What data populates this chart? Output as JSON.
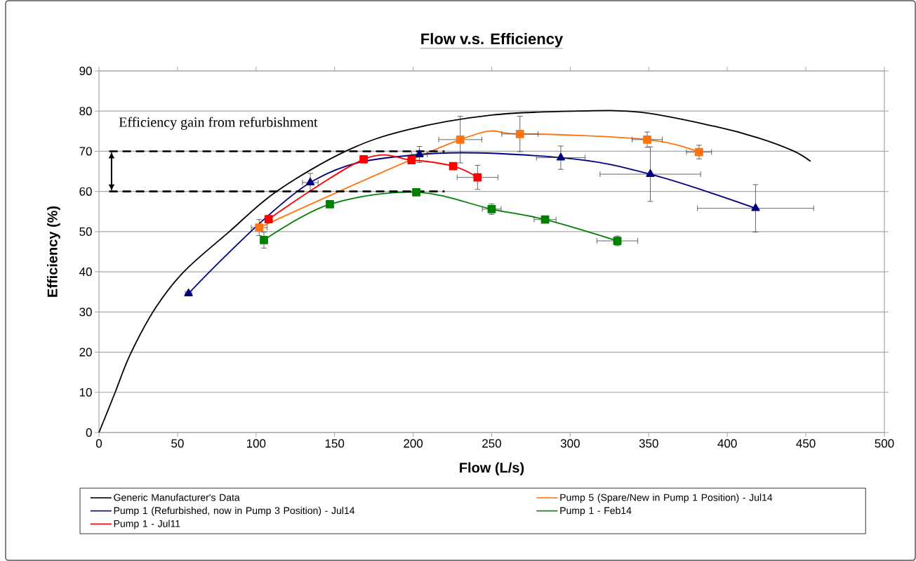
{
  "chart_data": {
    "type": "line",
    "title": "Flow v.s. Efficiency",
    "xlabel": "Flow (L/s)",
    "ylabel": "Efficiency (%)",
    "xlim": [
      0,
      500
    ],
    "ylim": [
      0,
      90
    ],
    "xticks": [
      0,
      50,
      100,
      150,
      200,
      250,
      300,
      350,
      400,
      450,
      500
    ],
    "yticks": [
      0,
      10,
      20,
      30,
      40,
      50,
      60,
      70,
      80,
      90
    ],
    "grid": "y",
    "legend": "bottom",
    "annotations": [
      "Efficiency gain from refurbishment"
    ],
    "ref_lines": [
      {
        "axis": "y",
        "value": 70,
        "color": "#000000",
        "line_style": "dashed"
      },
      {
        "axis": "y",
        "value": 60,
        "color": "#000000",
        "line_style": "dashed"
      }
    ],
    "series": [
      {
        "name": "Generic Manufacturer's Data",
        "color": "#000000",
        "marker": "none",
        "x": [
          0,
          10,
          20,
          36,
          54,
          83,
          113,
          157,
          196,
          250,
          305,
          345,
          392,
          420,
          442,
          453
        ],
        "values": [
          0,
          9.7,
          19.5,
          31,
          40,
          50,
          60,
          70,
          75.3,
          79,
          80,
          79.7,
          76.2,
          73.3,
          70.1,
          67.5
        ]
      },
      {
        "name": "Pump 5 (Spare/New in Pump 1 Position) - Jul14",
        "color": "#ff7410",
        "marker": "square",
        "x": [
          102,
          230,
          268,
          349,
          382
        ],
        "values": [
          51.0,
          72.9,
          74.3,
          72.9,
          69.8
        ],
        "errors": [
          2,
          5.8,
          4.4,
          1.9,
          1.7
        ],
        "xerrors": [
          5,
          13.7,
          11.6,
          9.6,
          8
        ]
      },
      {
        "name": "Pump 1 (Refurbished, now in Pump 3 Position) - Jul14",
        "color": "#000080",
        "marker": "triangle",
        "x": [
          57,
          134.5,
          204,
          294,
          351,
          418
        ],
        "values": [
          34.6,
          62.2,
          69.2,
          68.4,
          64.3,
          55.8
        ],
        "errors": [
          null,
          2.3,
          2,
          2.9,
          6.8,
          5.9
        ],
        "xerrors": [
          2,
          5,
          5,
          15.5,
          32,
          37
        ]
      },
      {
        "name": "Pump 1 - Feb14",
        "color": "#008000",
        "marker": "square",
        "x": [
          105,
          147,
          202,
          250,
          284,
          330
        ],
        "values": [
          47.9,
          56.8,
          59.8,
          55.6,
          53.0,
          47.7
        ],
        "errors": [
          2,
          null,
          null,
          1.3,
          null,
          1.2
        ],
        "xerrors": [
          null,
          null,
          null,
          6,
          7,
          13
        ]
      },
      {
        "name": "Pump 1 - Jul11",
        "color": "#ff0000",
        "marker": "square",
        "x": [
          108,
          168.5,
          199,
          225.5,
          241
        ],
        "values": [
          53.1,
          68.0,
          67.8,
          66.3,
          63.5
        ],
        "errors": [
          null,
          null,
          null,
          null,
          3
        ],
        "xerrors": [
          null,
          null,
          null,
          null,
          13
        ]
      }
    ]
  }
}
